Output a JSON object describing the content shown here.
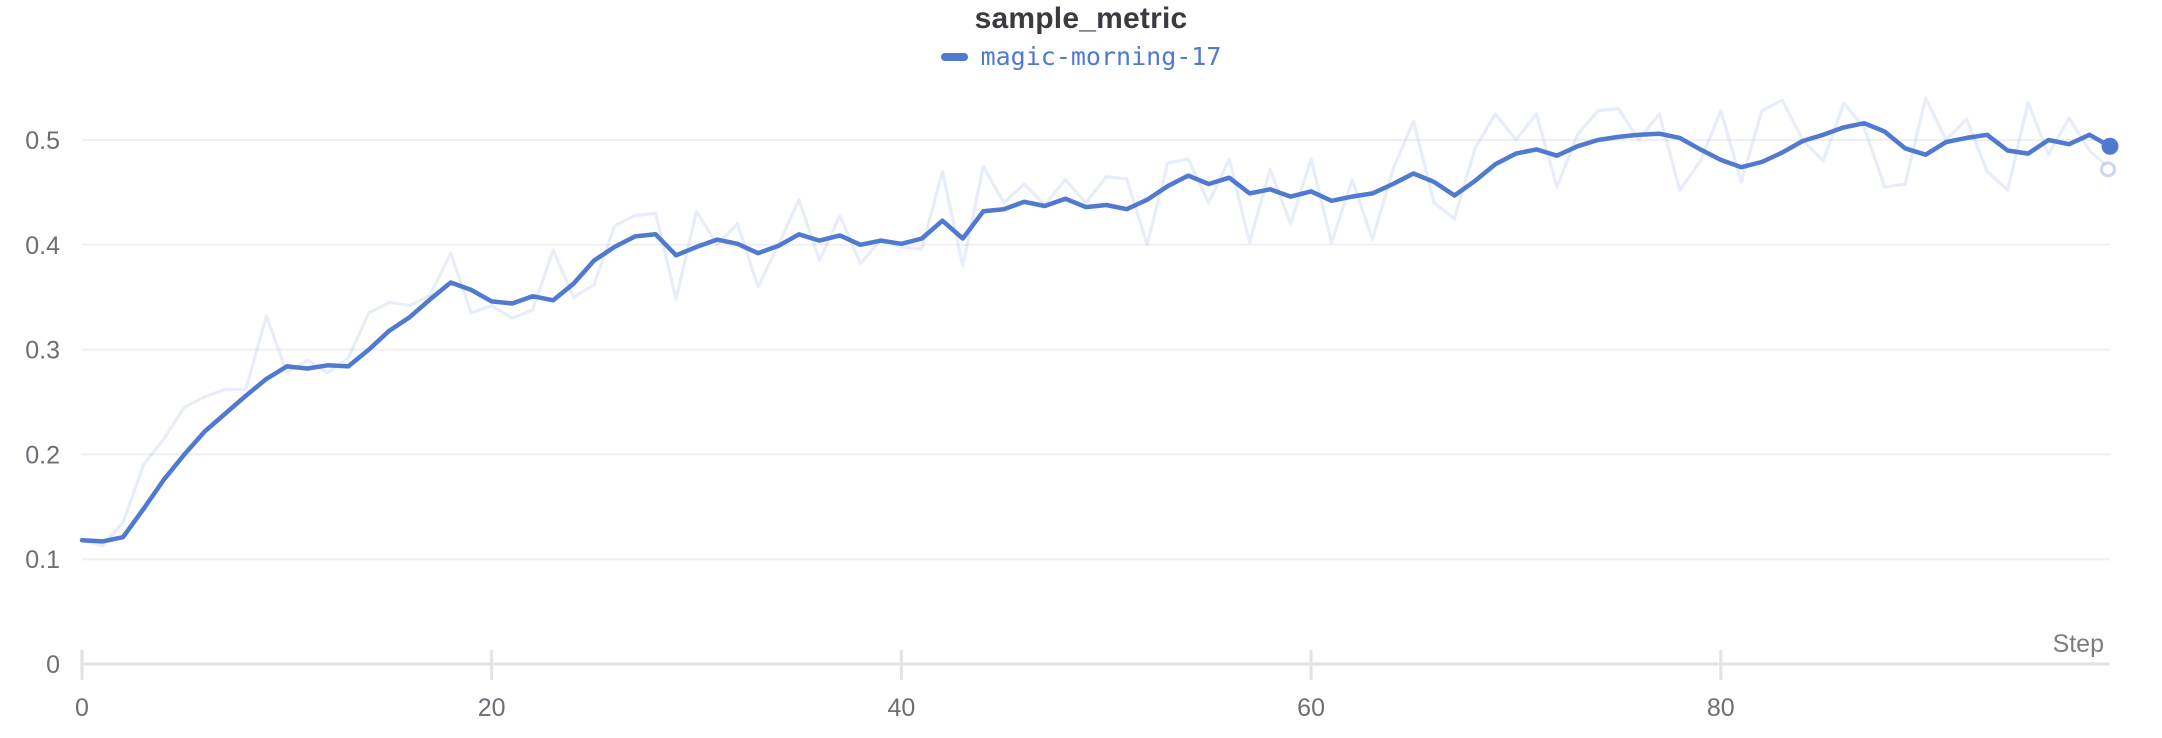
{
  "theme": {
    "accent": "#5079D0",
    "original_line_opacity": 0.13,
    "title_text": "#3a3a42",
    "tick_text": "#6e6e79",
    "axis_label_text": "#7c7c87",
    "grid_line": "#f0f0f4",
    "axis_line": "#e2e2e7",
    "background": "#ffffff"
  },
  "chart_data": {
    "type": "line",
    "title": "sample_metric",
    "legend_label": "magic-morning-17",
    "legend_position": "top-center",
    "xlabel": "Step",
    "ylabel": "",
    "grid": true,
    "xlim": [
      0,
      99
    ],
    "ylim": [
      0,
      0.55
    ],
    "x_ticks": [
      0,
      20,
      40,
      60,
      80
    ],
    "y_ticks": [
      0,
      0.1,
      0.2,
      0.3,
      0.4,
      0.5
    ],
    "y_tick_labels": [
      "0",
      "0.1",
      "0.2",
      "0.3",
      "0.4",
      "0.5"
    ],
    "x_start": 0,
    "x_step": 1,
    "series": [
      {
        "name": "magic-morning-17",
        "variant": "original",
        "end_marker": "open-circle",
        "values": [
          0.118,
          0.113,
          0.135,
          0.19,
          0.215,
          0.245,
          0.255,
          0.262,
          0.262,
          0.332,
          0.278,
          0.29,
          0.278,
          0.292,
          0.335,
          0.345,
          0.342,
          0.352,
          0.392,
          0.335,
          0.342,
          0.33,
          0.338,
          0.395,
          0.35,
          0.362,
          0.418,
          0.428,
          0.43,
          0.348,
          0.432,
          0.4,
          0.42,
          0.36,
          0.4,
          0.443,
          0.385,
          0.428,
          0.382,
          0.405,
          0.398,
          0.396,
          0.47,
          0.38,
          0.475,
          0.44,
          0.458,
          0.438,
          0.462,
          0.44,
          0.465,
          0.463,
          0.4,
          0.478,
          0.482,
          0.44,
          0.482,
          0.402,
          0.472,
          0.42,
          0.482,
          0.402,
          0.462,
          0.405,
          0.472,
          0.518,
          0.44,
          0.425,
          0.492,
          0.525,
          0.5,
          0.525,
          0.455,
          0.505,
          0.528,
          0.53,
          0.5,
          0.525,
          0.452,
          0.48,
          0.528,
          0.46,
          0.528,
          0.538,
          0.5,
          0.48,
          0.535,
          0.512,
          0.455,
          0.458,
          0.54,
          0.5,
          0.52,
          0.47,
          0.452,
          0.536,
          0.486,
          0.521,
          0.49,
          0.472
        ]
      },
      {
        "name": "magic-morning-17",
        "variant": "smoothed",
        "end_marker": "dot",
        "values": [
          0.118,
          0.117,
          0.121,
          0.148,
          0.176,
          0.2,
          0.222,
          0.239,
          0.256,
          0.272,
          0.284,
          0.282,
          0.285,
          0.284,
          0.3,
          0.318,
          0.331,
          0.348,
          0.364,
          0.357,
          0.346,
          0.344,
          0.351,
          0.347,
          0.363,
          0.385,
          0.398,
          0.408,
          0.41,
          0.39,
          0.398,
          0.405,
          0.401,
          0.392,
          0.399,
          0.41,
          0.404,
          0.409,
          0.4,
          0.404,
          0.401,
          0.406,
          0.423,
          0.406,
          0.432,
          0.434,
          0.441,
          0.437,
          0.444,
          0.436,
          0.438,
          0.434,
          0.443,
          0.456,
          0.466,
          0.458,
          0.464,
          0.449,
          0.453,
          0.446,
          0.451,
          0.442,
          0.446,
          0.449,
          0.458,
          0.468,
          0.46,
          0.447,
          0.461,
          0.477,
          0.487,
          0.491,
          0.485,
          0.494,
          0.5,
          0.503,
          0.505,
          0.506,
          0.502,
          0.491,
          0.481,
          0.474,
          0.479,
          0.488,
          0.499,
          0.505,
          0.512,
          0.516,
          0.508,
          0.492,
          0.486,
          0.498,
          0.502,
          0.505,
          0.49,
          0.487,
          0.5,
          0.496,
          0.505,
          0.494
        ]
      }
    ]
  }
}
